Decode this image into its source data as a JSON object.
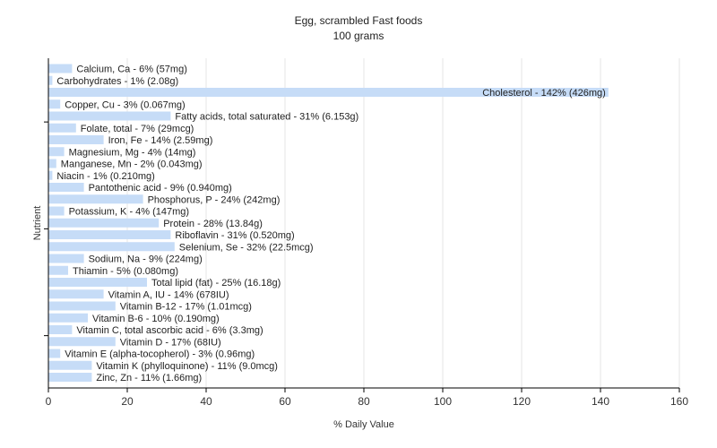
{
  "chart_data": {
    "type": "bar",
    "orientation": "horizontal",
    "title": "Egg, scrambled Fast foods",
    "subtitle": "100 grams",
    "xlabel": "% Daily Value",
    "ylabel": "Nutrient",
    "xlim": [
      0,
      160
    ],
    "xticks": [
      0,
      20,
      40,
      60,
      80,
      100,
      120,
      140,
      160
    ],
    "grid": true,
    "bar_color": "#c6dcf7",
    "categories": [
      "Calcium, Ca",
      "Carbohydrates",
      "Cholesterol",
      "Copper, Cu",
      "Fatty acids, total saturated",
      "Folate, total",
      "Iron, Fe",
      "Magnesium, Mg",
      "Manganese, Mn",
      "Niacin",
      "Pantothenic acid",
      "Phosphorus, P",
      "Potassium, K",
      "Protein",
      "Riboflavin",
      "Selenium, Se",
      "Sodium, Na",
      "Thiamin",
      "Total lipid (fat)",
      "Vitamin A, IU",
      "Vitamin B-12",
      "Vitamin B-6",
      "Vitamin C, total ascorbic acid",
      "Vitamin D",
      "Vitamin E (alpha-tocopherol)",
      "Vitamin K (phylloquinone)",
      "Zinc, Zn"
    ],
    "values": [
      6,
      1,
      142,
      3,
      31,
      7,
      14,
      4,
      2,
      1,
      9,
      24,
      4,
      28,
      31,
      32,
      9,
      5,
      25,
      14,
      17,
      10,
      6,
      17,
      3,
      11,
      11
    ],
    "labels": [
      "Calcium, Ca - 6% (57mg)",
      "Carbohydrates - 1% (2.08g)",
      "Cholesterol - 142% (426mg)",
      "Copper, Cu - 3% (0.067mg)",
      "Fatty acids, total saturated - 31% (6.153g)",
      "Folate, total - 7% (29mcg)",
      "Iron, Fe - 14% (2.59mg)",
      "Magnesium, Mg - 4% (14mg)",
      "Manganese, Mn - 2% (0.043mg)",
      "Niacin - 1% (0.210mg)",
      "Pantothenic acid - 9% (0.940mg)",
      "Phosphorus, P - 24% (242mg)",
      "Potassium, K - 4% (147mg)",
      "Protein - 28% (13.84g)",
      "Riboflavin - 31% (0.520mg)",
      "Selenium, Se - 32% (22.5mcg)",
      "Sodium, Na - 9% (224mg)",
      "Thiamin - 5% (0.080mg)",
      "Total lipid (fat) - 25% (16.18g)",
      "Vitamin A, IU - 14% (678IU)",
      "Vitamin B-12 - 17% (1.01mcg)",
      "Vitamin B-6 - 10% (0.190mg)",
      "Vitamin C, total ascorbic acid - 6% (3.3mg)",
      "Vitamin D - 17% (68IU)",
      "Vitamin E (alpha-tocopherol) - 3% (0.96mg)",
      "Vitamin K (phylloquinone) - 11% (9.0mcg)",
      "Zinc, Zn - 11% (1.66mg)"
    ]
  }
}
